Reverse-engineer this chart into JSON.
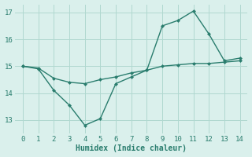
{
  "line1_x": [
    0,
    1,
    2,
    3,
    4,
    5,
    6,
    7,
    8,
    9,
    10,
    11,
    12,
    13,
    14
  ],
  "line1_y": [
    15.0,
    14.9,
    14.1,
    13.55,
    12.8,
    13.05,
    14.35,
    14.6,
    14.85,
    16.5,
    16.7,
    17.05,
    16.2,
    15.2,
    15.3
  ],
  "line2_x": [
    0,
    1,
    2,
    3,
    4,
    5,
    6,
    7,
    8,
    9,
    10,
    11,
    12,
    13,
    14
  ],
  "line2_y": [
    15.0,
    14.93,
    14.55,
    14.4,
    14.35,
    14.5,
    14.6,
    14.75,
    14.85,
    15.0,
    15.05,
    15.1,
    15.1,
    15.15,
    15.2
  ],
  "line_color": "#2a7d6e",
  "bg_color": "#daf0ec",
  "grid_color": "#b0d8d0",
  "xlabel": "Humidex (Indice chaleur)",
  "xlim": [
    -0.5,
    14.5
  ],
  "ylim": [
    12.5,
    17.3
  ],
  "yticks": [
    13,
    14,
    15,
    16,
    17
  ],
  "xticks": [
    0,
    1,
    2,
    3,
    4,
    5,
    6,
    7,
    8,
    9,
    10,
    11,
    12,
    13,
    14
  ]
}
